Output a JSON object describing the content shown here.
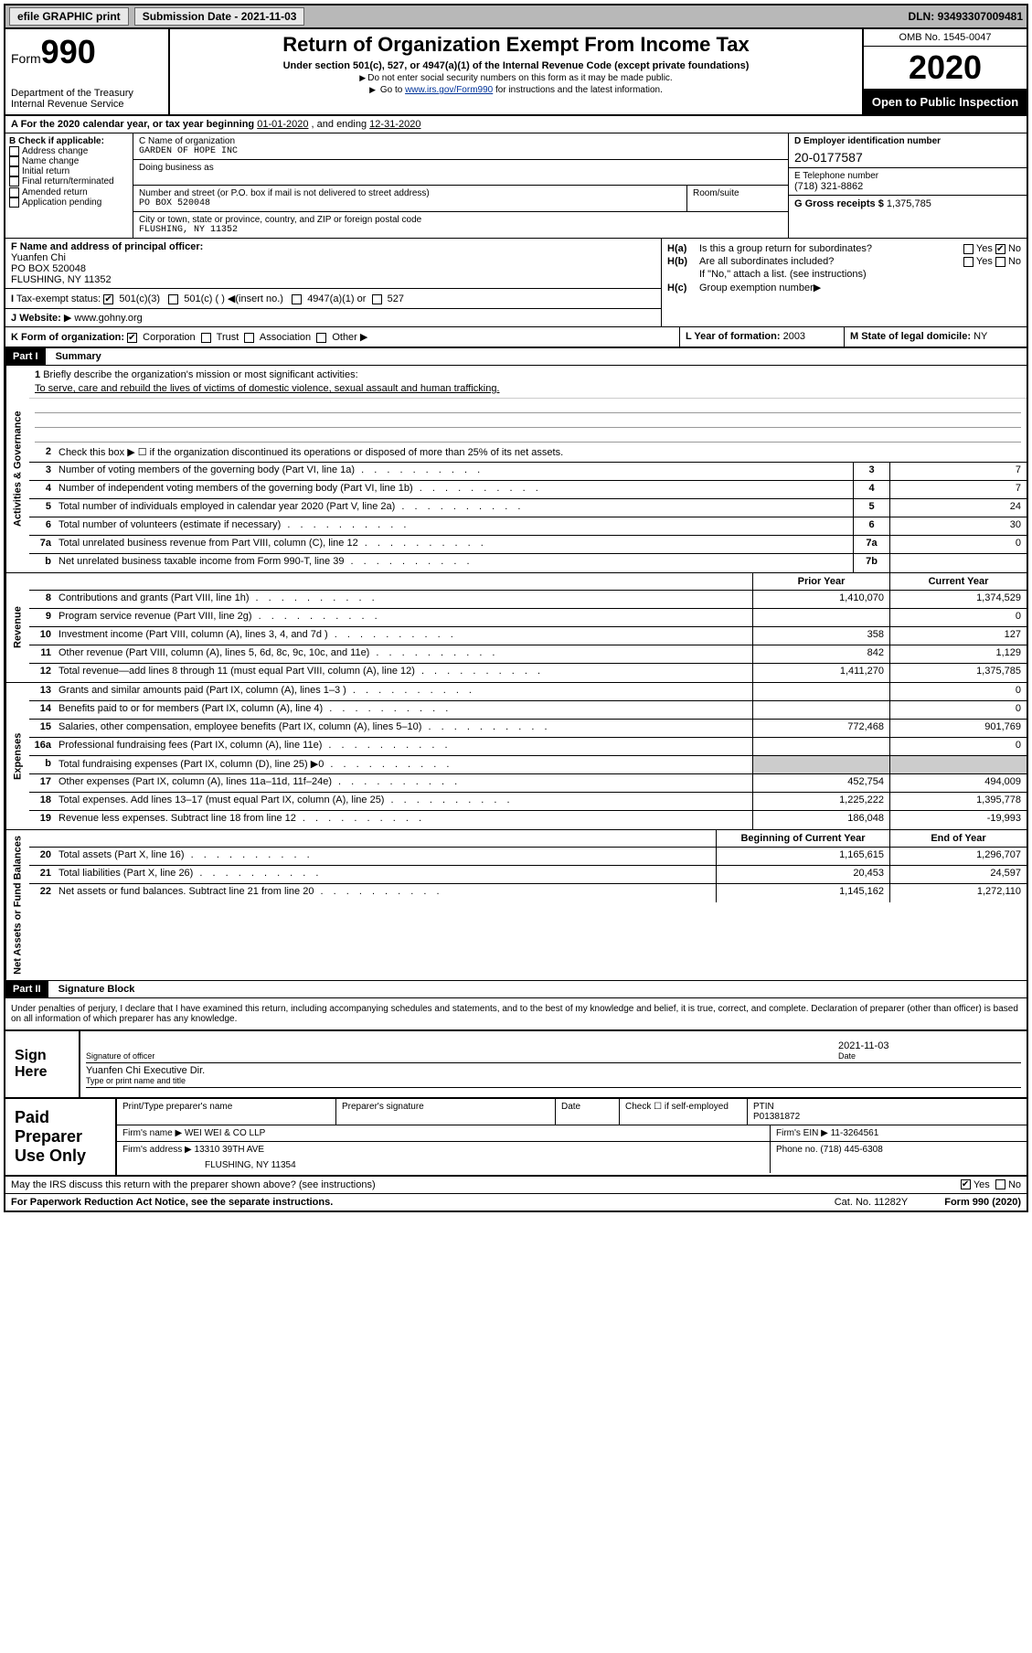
{
  "topbar": {
    "efile_label": "efile GRAPHIC print",
    "submission_label": "Submission Date",
    "submission_date": "2021-11-03",
    "dln_label": "DLN:",
    "dln": "93493307009481"
  },
  "header": {
    "form_prefix": "Form",
    "form_number": "990",
    "dept": "Department of the Treasury",
    "irs": "Internal Revenue Service",
    "title": "Return of Organization Exempt From Income Tax",
    "subtitle": "Under section 501(c), 527, or 4947(a)(1) of the Internal Revenue Code (except private foundations)",
    "note1": "Do not enter social security numbers on this form as it may be made public.",
    "note2_pre": "Go to ",
    "note2_link": "www.irs.gov/Form990",
    "note2_post": " for instructions and the latest information.",
    "omb": "OMB No. 1545-0047",
    "year": "2020",
    "inspect": "Open to Public Inspection"
  },
  "period": {
    "label_a": "A For the 2020 calendar year, or tax year beginning ",
    "begin": "01-01-2020",
    "mid": " , and ending ",
    "end": "12-31-2020"
  },
  "b": {
    "label": "B Check if applicable:",
    "opts": [
      "Address change",
      "Name change",
      "Initial return",
      "Final return/terminated",
      "Amended return",
      "Application pending"
    ]
  },
  "c": {
    "name_label": "C Name of organization",
    "name": "GARDEN OF HOPE INC",
    "dba_label": "Doing business as",
    "street_label": "Number and street (or P.O. box if mail is not delivered to street address)",
    "room_label": "Room/suite",
    "street": "PO BOX 520048",
    "city_label": "City or town, state or province, country, and ZIP or foreign postal code",
    "city": "FLUSHING, NY  11352"
  },
  "d": {
    "ein_label": "D Employer identification number",
    "ein": "20-0177587",
    "phone_label": "E Telephone number",
    "phone": "(718) 321-8862",
    "gross_label": "G Gross receipts $",
    "gross": "1,375,785"
  },
  "f": {
    "label": "F Name and address of principal officer:",
    "name": "Yuanfen Chi",
    "street": "PO BOX 520048",
    "city": "FLUSHING, NY  11352"
  },
  "h": {
    "a_label": "H(a)",
    "a_text": "Is this a group return for subordinates?",
    "b_label": "H(b)",
    "b_text": "Are all subordinates included?",
    "b_note": "If \"No,\" attach a list. (see instructions)",
    "c_label": "H(c)",
    "c_text": "Group exemption number",
    "yes": "Yes",
    "no": "No"
  },
  "i": {
    "label": "Tax-exempt status:",
    "opt1": "501(c)(3)",
    "opt2": "501(c) (  )",
    "opt2_note": "(insert no.)",
    "opt3": "4947(a)(1) or",
    "opt4": "527"
  },
  "j": {
    "label": "J",
    "website_label": "Website:",
    "website": "www.gohny.org"
  },
  "k": {
    "label": "K Form of organization:",
    "opts": [
      "Corporation",
      "Trust",
      "Association",
      "Other"
    ]
  },
  "l": {
    "label": "L Year of formation:",
    "value": "2003"
  },
  "m": {
    "label": "M State of legal domicile:",
    "value": "NY"
  },
  "part1": {
    "header": "Part I",
    "title": "Summary",
    "q1_label": "1",
    "q1": "Briefly describe the organization's mission or most significant activities:",
    "mission": "To serve, care and rebuild the lives of victims of domestic violence, sexual assault and human trafficking.",
    "q2_label": "2",
    "q2": "Check this box ▶ ☐ if the organization discontinued its operations or disposed of more than 25% of its net assets.",
    "gov_lines": [
      {
        "n": "3",
        "desc": "Number of voting members of the governing body (Part VI, line 1a)",
        "box": "3",
        "val": "7"
      },
      {
        "n": "4",
        "desc": "Number of independent voting members of the governing body (Part VI, line 1b)",
        "box": "4",
        "val": "7"
      },
      {
        "n": "5",
        "desc": "Total number of individuals employed in calendar year 2020 (Part V, line 2a)",
        "box": "5",
        "val": "24"
      },
      {
        "n": "6",
        "desc": "Total number of volunteers (estimate if necessary)",
        "box": "6",
        "val": "30"
      },
      {
        "n": "7a",
        "desc": "Total unrelated business revenue from Part VIII, column (C), line 12",
        "box": "7a",
        "val": "0"
      },
      {
        "n": "b",
        "desc": "Net unrelated business taxable income from Form 990-T, line 39",
        "box": "7b",
        "val": ""
      }
    ],
    "prior_year": "Prior Year",
    "current_year": "Current Year",
    "rev_lines": [
      {
        "n": "8",
        "desc": "Contributions and grants (Part VIII, line 1h)",
        "py": "1,410,070",
        "cy": "1,374,529"
      },
      {
        "n": "9",
        "desc": "Program service revenue (Part VIII, line 2g)",
        "py": "",
        "cy": "0"
      },
      {
        "n": "10",
        "desc": "Investment income (Part VIII, column (A), lines 3, 4, and 7d )",
        "py": "358",
        "cy": "127"
      },
      {
        "n": "11",
        "desc": "Other revenue (Part VIII, column (A), lines 5, 6d, 8c, 9c, 10c, and 11e)",
        "py": "842",
        "cy": "1,129"
      },
      {
        "n": "12",
        "desc": "Total revenue—add lines 8 through 11 (must equal Part VIII, column (A), line 12)",
        "py": "1,411,270",
        "cy": "1,375,785"
      }
    ],
    "exp_lines": [
      {
        "n": "13",
        "desc": "Grants and similar amounts paid (Part IX, column (A), lines 1–3 )",
        "py": "",
        "cy": "0"
      },
      {
        "n": "14",
        "desc": "Benefits paid to or for members (Part IX, column (A), line 4)",
        "py": "",
        "cy": "0"
      },
      {
        "n": "15",
        "desc": "Salaries, other compensation, employee benefits (Part IX, column (A), lines 5–10)",
        "py": "772,468",
        "cy": "901,769"
      },
      {
        "n": "16a",
        "desc": "Professional fundraising fees (Part IX, column (A), line 11e)",
        "py": "",
        "cy": "0"
      },
      {
        "n": "b",
        "desc": "Total fundraising expenses (Part IX, column (D), line 25) ▶0",
        "py": "SHADED",
        "cy": "SHADED"
      },
      {
        "n": "17",
        "desc": "Other expenses (Part IX, column (A), lines 11a–11d, 11f–24e)",
        "py": "452,754",
        "cy": "494,009"
      },
      {
        "n": "18",
        "desc": "Total expenses. Add lines 13–17 (must equal Part IX, column (A), line 25)",
        "py": "1,225,222",
        "cy": "1,395,778"
      },
      {
        "n": "19",
        "desc": "Revenue less expenses. Subtract line 18 from line 12",
        "py": "186,048",
        "cy": "-19,993"
      }
    ],
    "begin_year": "Beginning of Current Year",
    "end_year": "End of Year",
    "na_lines": [
      {
        "n": "20",
        "desc": "Total assets (Part X, line 16)",
        "py": "1,165,615",
        "cy": "1,296,707"
      },
      {
        "n": "21",
        "desc": "Total liabilities (Part X, line 26)",
        "py": "20,453",
        "cy": "24,597"
      },
      {
        "n": "22",
        "desc": "Net assets or fund balances. Subtract line 21 from line 20",
        "py": "1,145,162",
        "cy": "1,272,110"
      }
    ]
  },
  "vtabs": {
    "gov": "Activities & Governance",
    "rev": "Revenue",
    "exp": "Expenses",
    "na": "Net Assets or Fund Balances"
  },
  "part2": {
    "header": "Part II",
    "title": "Signature Block",
    "perjury": "Under penalties of perjury, I declare that I have examined this return, including accompanying schedules and statements, and to the best of my knowledge and belief, it is true, correct, and complete. Declaration of preparer (other than officer) is based on all information of which preparer has any knowledge."
  },
  "sign": {
    "label": "Sign Here",
    "sig_label": "Signature of officer",
    "date_label": "Date",
    "date": "2021-11-03",
    "name": "Yuanfen Chi  Executive Dir.",
    "name_label": "Type or print name and title"
  },
  "prep": {
    "label": "Paid Preparer Use Only",
    "print_label": "Print/Type preparer's name",
    "sig_label": "Preparer's signature",
    "date_label": "Date",
    "check_label": "Check ☐ if self-employed",
    "ptin_label": "PTIN",
    "ptin": "P01381872",
    "firm_name_label": "Firm's name",
    "firm_name": "WEI WEI & CO LLP",
    "firm_ein_label": "Firm's EIN",
    "firm_ein": "11-3264561",
    "firm_addr_label": "Firm's address",
    "firm_addr1": "13310 39TH AVE",
    "firm_addr2": "FLUSHING, NY  11354",
    "phone_label": "Phone no.",
    "phone": "(718) 445-6308"
  },
  "discuss": {
    "text": "May the IRS discuss this return with the preparer shown above? (see instructions)",
    "yes": "Yes",
    "no": "No"
  },
  "footer": {
    "pra": "For Paperwork Reduction Act Notice, see the separate instructions.",
    "cat": "Cat. No. 11282Y",
    "form": "Form 990 (2020)"
  }
}
